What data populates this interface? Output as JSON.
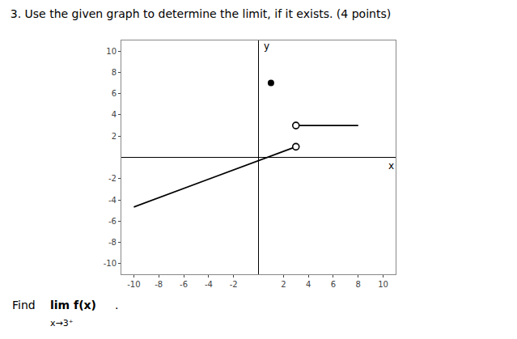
{
  "chart_data": {
    "type": "line",
    "title": "3. Use the given graph to determine the limit, if it exists. (4 points)",
    "xlabel": "x",
    "ylabel": "y",
    "xlim": [
      -11,
      11
    ],
    "ylim": [
      -11,
      11
    ],
    "xticks": [
      -10,
      -8,
      -6,
      -4,
      -2,
      2,
      4,
      6,
      8,
      10
    ],
    "yticks": [
      -10,
      -8,
      -6,
      -4,
      -2,
      2,
      4,
      6,
      8,
      10
    ],
    "grid": false,
    "color": "#000000",
    "series": [
      {
        "type": "line",
        "x": [
          -10,
          3
        ],
        "values": [
          -4.67,
          1
        ],
        "color": "#000000",
        "line_style": "solid"
      },
      {
        "type": "line",
        "x": [
          3,
          8
        ],
        "values": [
          3,
          3
        ],
        "color": "#000000",
        "line_style": "solid"
      },
      {
        "type": "scatter",
        "x": [
          3
        ],
        "values": [
          1
        ],
        "color": "#000000",
        "marker": "open_circle"
      },
      {
        "type": "scatter",
        "x": [
          3
        ],
        "values": [
          3
        ],
        "color": "#000000",
        "marker": "open_circle"
      },
      {
        "type": "scatter",
        "x": [
          1
        ],
        "values": [
          7
        ],
        "color": "#000000",
        "marker": "filled_circle"
      }
    ],
    "annotations": [
      "Find",
      "lim f(x)",
      "x→3⁺",
      "."
    ]
  }
}
